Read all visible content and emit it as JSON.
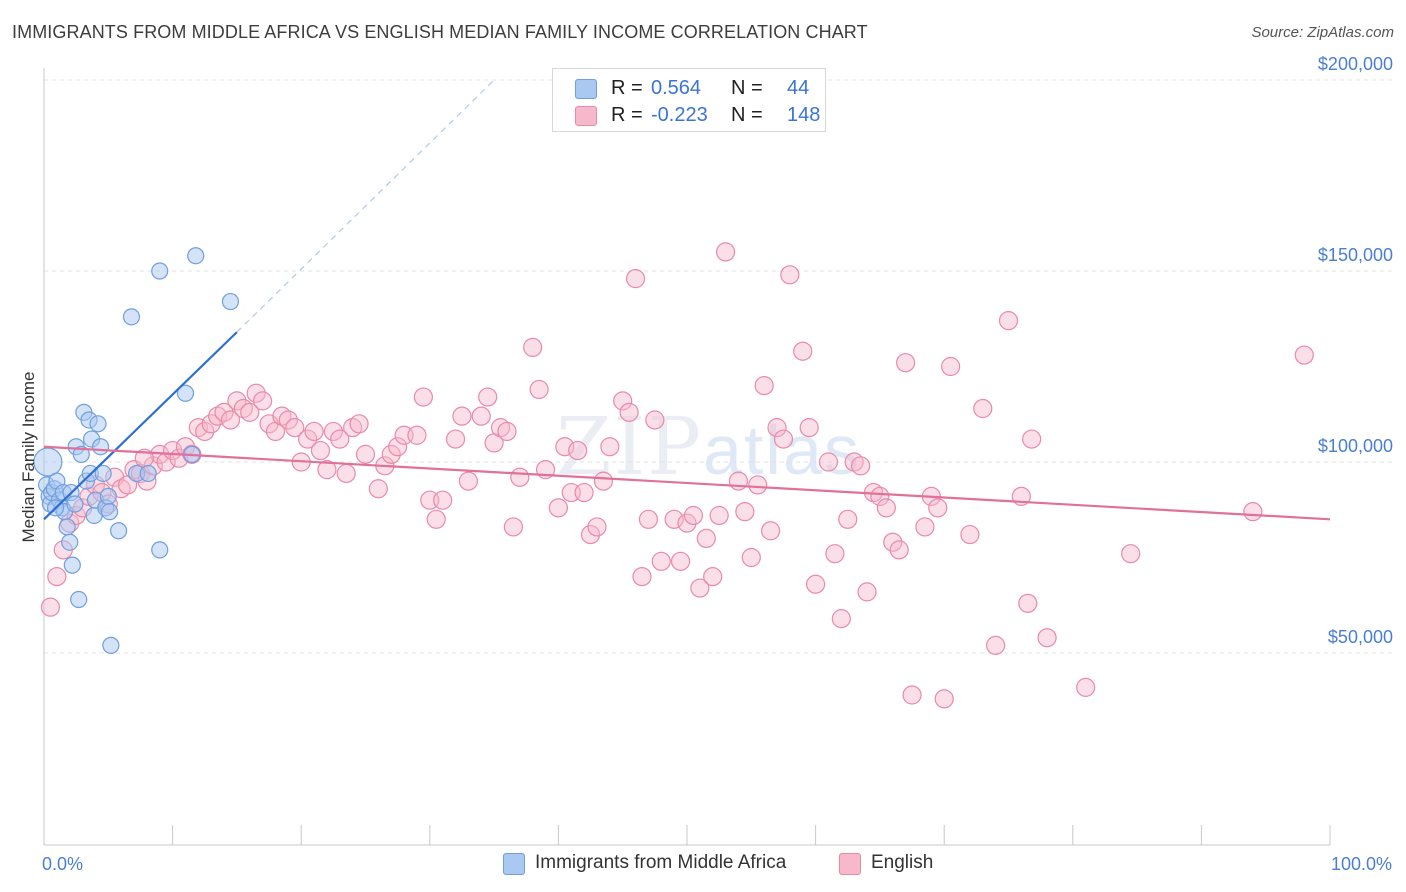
{
  "header": {
    "title": "IMMIGRANTS FROM MIDDLE AFRICA VS ENGLISH MEDIAN FAMILY INCOME CORRELATION CHART",
    "source": "Source: ZipAtlas.com"
  },
  "watermark": {
    "zip": "ZIP",
    "atlas": "atlas"
  },
  "legend": {
    "rows": [
      {
        "r_label": "R =",
        "r_value": "0.564",
        "n_label": "N =",
        "n_value": "44",
        "color": "#a9c8f2"
      },
      {
        "r_label": "R =",
        "r_value": "-0.223",
        "n_label": "N =",
        "n_value": "148",
        "color": "#f7b8cc"
      }
    ]
  },
  "bottom_legend": [
    {
      "label": "Immigrants from Middle Africa",
      "color": "#a9c8f2"
    },
    {
      "label": "English",
      "color": "#f7b8cc"
    }
  ],
  "chart_data": {
    "type": "scatter",
    "ylabel": "Median Family Income",
    "xlim": [
      0,
      100
    ],
    "ylim": [
      0,
      210000
    ],
    "x_tick_labels": [
      "0.0%",
      "100.0%"
    ],
    "y_ticks": [
      {
        "value": 50000,
        "label": "$50,000"
      },
      {
        "value": 100000,
        "label": "$100,000"
      },
      {
        "value": 150000,
        "label": "$150,000"
      },
      {
        "value": 200000,
        "label": "$200,000"
      }
    ],
    "grid": "horizontal dashed",
    "colors": {
      "blue_fill": "#a9c8f2",
      "blue_stroke": "#6f9fdf",
      "blue_line": "#2f6fd2",
      "pink_fill": "#f7b8cc",
      "pink_stroke": "#e98aa8",
      "pink_line": "#e0719a"
    },
    "series": [
      {
        "name": "Immigrants from Middle Africa",
        "trend": {
          "x1": 0,
          "y1": 85000,
          "x2": 15,
          "y2": 134000,
          "dashed_to_x": 35,
          "dashed_to_y": 200000
        },
        "points": [
          [
            0.3,
            100000,
            14
          ],
          [
            0.2,
            94000,
            8
          ],
          [
            0.4,
            91000,
            8
          ],
          [
            0.5,
            89000,
            8
          ],
          [
            0.6,
            92000,
            8
          ],
          [
            0.8,
            93000,
            8
          ],
          [
            1.0,
            95000,
            8
          ],
          [
            1.2,
            90000,
            8
          ],
          [
            1.4,
            88000,
            8
          ],
          [
            1.5,
            92000,
            8
          ],
          [
            1.6,
            87000,
            8
          ],
          [
            1.8,
            83000,
            8
          ],
          [
            2.0,
            79000,
            8
          ],
          [
            2.1,
            92000,
            8
          ],
          [
            2.2,
            73000,
            8
          ],
          [
            2.4,
            89000,
            8
          ],
          [
            2.5,
            104000,
            8
          ],
          [
            2.7,
            64000,
            8
          ],
          [
            2.9,
            102000,
            8
          ],
          [
            3.1,
            113000,
            8
          ],
          [
            3.3,
            95000,
            8
          ],
          [
            3.5,
            111000,
            8
          ],
          [
            3.6,
            97000,
            8
          ],
          [
            3.7,
            106000,
            8
          ],
          [
            3.9,
            86000,
            8
          ],
          [
            4.0,
            90000,
            8
          ],
          [
            4.2,
            110000,
            8
          ],
          [
            4.4,
            104000,
            8
          ],
          [
            4.6,
            97000,
            8
          ],
          [
            4.8,
            88000,
            8
          ],
          [
            5.0,
            91000,
            8
          ],
          [
            5.1,
            87000,
            8
          ],
          [
            5.2,
            52000,
            8
          ],
          [
            5.8,
            82000,
            8
          ],
          [
            6.8,
            138000,
            8
          ],
          [
            7.2,
            97000,
            8
          ],
          [
            8.1,
            97000,
            8
          ],
          [
            9.0,
            150000,
            8
          ],
          [
            9.0,
            77000,
            8
          ],
          [
            11.0,
            118000,
            8
          ],
          [
            11.5,
            102000,
            8
          ],
          [
            11.8,
            154000,
            8
          ],
          [
            14.5,
            142000,
            8
          ],
          [
            0.9,
            88000,
            8
          ]
        ]
      },
      {
        "name": "English",
        "trend": {
          "x1": 0,
          "y1": 104000,
          "x2": 100,
          "y2": 85000
        },
        "points": [
          [
            0.5,
            62000,
            9
          ],
          [
            1.0,
            70000,
            9
          ],
          [
            1.5,
            77000,
            9
          ],
          [
            2.0,
            84000,
            9
          ],
          [
            2.5,
            86000,
            9
          ],
          [
            3.0,
            88000,
            9
          ],
          [
            3.5,
            91000,
            9
          ],
          [
            4.0,
            94000,
            9
          ],
          [
            4.5,
            92000,
            9
          ],
          [
            5.0,
            89000,
            9
          ],
          [
            5.5,
            96000,
            9
          ],
          [
            6.0,
            93000,
            9
          ],
          [
            6.5,
            94000,
            9
          ],
          [
            7.0,
            98000,
            9
          ],
          [
            7.5,
            97000,
            9
          ],
          [
            8.0,
            95000,
            9
          ],
          [
            8.5,
            99000,
            9
          ],
          [
            9.0,
            102000,
            9
          ],
          [
            9.5,
            100000,
            9
          ],
          [
            10.0,
            103000,
            9
          ],
          [
            10.5,
            101000,
            9
          ],
          [
            11.0,
            104000,
            9
          ],
          [
            11.5,
            102000,
            9
          ],
          [
            12.0,
            109000,
            9
          ],
          [
            12.5,
            108000,
            9
          ],
          [
            13.0,
            110000,
            9
          ],
          [
            13.5,
            112000,
            9
          ],
          [
            14.0,
            113000,
            9
          ],
          [
            14.5,
            111000,
            9
          ],
          [
            15.0,
            116000,
            9
          ],
          [
            15.5,
            114000,
            9
          ],
          [
            16.0,
            113000,
            9
          ],
          [
            16.5,
            118000,
            9
          ],
          [
            17.0,
            116000,
            9
          ],
          [
            17.5,
            110000,
            9
          ],
          [
            18.0,
            108000,
            9
          ],
          [
            18.5,
            112000,
            9
          ],
          [
            19.0,
            111000,
            9
          ],
          [
            19.5,
            109000,
            9
          ],
          [
            20.0,
            100000,
            9
          ],
          [
            20.5,
            106000,
            9
          ],
          [
            21.0,
            108000,
            9
          ],
          [
            21.5,
            103000,
            9
          ],
          [
            22.0,
            98000,
            9
          ],
          [
            22.5,
            108000,
            9
          ],
          [
            23.0,
            106000,
            9
          ],
          [
            23.5,
            97000,
            9
          ],
          [
            24.0,
            109000,
            9
          ],
          [
            24.5,
            110000,
            9
          ],
          [
            25.0,
            102000,
            9
          ],
          [
            26.0,
            93000,
            9
          ],
          [
            26.5,
            99000,
            9
          ],
          [
            27.0,
            102000,
            9
          ],
          [
            27.5,
            104000,
            9
          ],
          [
            28.0,
            107000,
            9
          ],
          [
            29.0,
            107000,
            9
          ],
          [
            29.5,
            117000,
            9
          ],
          [
            30.0,
            90000,
            9
          ],
          [
            30.5,
            85000,
            9
          ],
          [
            31.0,
            90000,
            9
          ],
          [
            32.0,
            106000,
            9
          ],
          [
            32.5,
            112000,
            9
          ],
          [
            33.0,
            95000,
            9
          ],
          [
            34.0,
            112000,
            9
          ],
          [
            34.5,
            117000,
            9
          ],
          [
            35.0,
            105000,
            9
          ],
          [
            35.5,
            109000,
            9
          ],
          [
            36.0,
            108000,
            9
          ],
          [
            36.5,
            83000,
            9
          ],
          [
            37.0,
            96000,
            9
          ],
          [
            38.0,
            130000,
            9
          ],
          [
            38.5,
            119000,
            9
          ],
          [
            39.0,
            98000,
            9
          ],
          [
            40.0,
            88000,
            9
          ],
          [
            40.5,
            104000,
            9
          ],
          [
            41.0,
            92000,
            9
          ],
          [
            41.5,
            103000,
            9
          ],
          [
            42.0,
            92000,
            9
          ],
          [
            42.5,
            81000,
            9
          ],
          [
            43.0,
            83000,
            9
          ],
          [
            43.5,
            95000,
            9
          ],
          [
            44.0,
            104000,
            9
          ],
          [
            45.0,
            116000,
            9
          ],
          [
            45.5,
            113000,
            9
          ],
          [
            46.0,
            148000,
            9
          ],
          [
            46.5,
            70000,
            9
          ],
          [
            47.0,
            85000,
            9
          ],
          [
            47.5,
            111000,
            9
          ],
          [
            48.0,
            74000,
            9
          ],
          [
            49.0,
            85000,
            9
          ],
          [
            49.5,
            74000,
            9
          ],
          [
            50.0,
            84000,
            9
          ],
          [
            50.5,
            86000,
            9
          ],
          [
            51.0,
            67000,
            9
          ],
          [
            51.5,
            80000,
            9
          ],
          [
            52.0,
            70000,
            9
          ],
          [
            52.5,
            86000,
            9
          ],
          [
            53.0,
            155000,
            9
          ],
          [
            54.0,
            95000,
            9
          ],
          [
            54.5,
            87000,
            9
          ],
          [
            55.0,
            75000,
            9
          ],
          [
            55.5,
            94000,
            9
          ],
          [
            56.0,
            120000,
            9
          ],
          [
            56.5,
            82000,
            9
          ],
          [
            57.0,
            109000,
            9
          ],
          [
            57.5,
            106000,
            9
          ],
          [
            58.0,
            149000,
            9
          ],
          [
            59.0,
            129000,
            9
          ],
          [
            59.5,
            109000,
            9
          ],
          [
            60.0,
            68000,
            9
          ],
          [
            61.0,
            100000,
            9
          ],
          [
            61.5,
            76000,
            9
          ],
          [
            62.0,
            59000,
            9
          ],
          [
            62.5,
            85000,
            9
          ],
          [
            63.0,
            100000,
            9
          ],
          [
            63.5,
            99000,
            9
          ],
          [
            64.0,
            66000,
            9
          ],
          [
            64.5,
            92000,
            9
          ],
          [
            65.0,
            91000,
            9
          ],
          [
            65.5,
            88000,
            9
          ],
          [
            66.0,
            79000,
            9
          ],
          [
            66.5,
            77000,
            9
          ],
          [
            67.0,
            126000,
            9
          ],
          [
            67.5,
            39000,
            9
          ],
          [
            68.5,
            83000,
            9
          ],
          [
            69.0,
            91000,
            9
          ],
          [
            69.5,
            88000,
            9
          ],
          [
            70.0,
            38000,
            9
          ],
          [
            70.5,
            125000,
            9
          ],
          [
            72.0,
            81000,
            9
          ],
          [
            73.0,
            114000,
            9
          ],
          [
            74.0,
            52000,
            9
          ],
          [
            75.0,
            137000,
            9
          ],
          [
            76.0,
            91000,
            9
          ],
          [
            76.5,
            63000,
            9
          ],
          [
            76.8,
            106000,
            9
          ],
          [
            78.0,
            54000,
            9
          ],
          [
            81.0,
            41000,
            9
          ],
          [
            84.5,
            76000,
            9
          ],
          [
            94.0,
            87000,
            9
          ],
          [
            98.0,
            128000,
            9
          ],
          [
            7.8,
            101000,
            9
          ]
        ]
      }
    ]
  }
}
